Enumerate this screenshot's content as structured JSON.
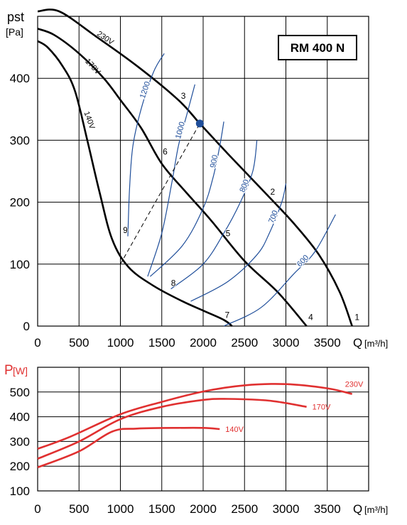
{
  "colors": {
    "grid": "#000000",
    "rpm_curve": "#1f4e9a",
    "power_curve": "#e03030",
    "point": "#1f4e9a"
  },
  "chart_data": [
    {
      "type": "line",
      "title": "RM 400 N",
      "ylabel": "pst",
      "yunit": "[Pa]",
      "xlabel": "Q",
      "xunit": "[m³/h]",
      "xlim": [
        0,
        4000
      ],
      "ylim": [
        0,
        500
      ],
      "x_ticks": [
        0,
        500,
        1000,
        1500,
        2000,
        2500,
        3000,
        3500
      ],
      "y_ticks": [
        0,
        100,
        200,
        300,
        400
      ],
      "x_tick_labels": [
        "0",
        "500",
        "1000",
        "1500",
        "2000",
        "2500",
        "3000",
        "3500"
      ],
      "y_tick_labels": [
        "0",
        "100",
        "200",
        "300",
        "400"
      ],
      "grid": true,
      "series": [
        {
          "name": "230V",
          "points": [
            [
              0,
              508
            ],
            [
              260,
              508
            ],
            [
              700,
              468
            ],
            [
              1200,
              420
            ],
            [
              1700,
              365
            ],
            [
              1960,
              327
            ],
            [
              2300,
              278
            ],
            [
              2800,
              208
            ],
            [
              3100,
              165
            ],
            [
              3400,
              115
            ],
            [
              3650,
              55
            ],
            [
              3800,
              0
            ]
          ]
        },
        {
          "name": "170V",
          "points": [
            [
              0,
              480
            ],
            [
              200,
              470
            ],
            [
              500,
              440
            ],
            [
              800,
              400
            ],
            [
              1000,
              365
            ],
            [
              1250,
              320
            ],
            [
              1500,
              262
            ],
            [
              1800,
              215
            ],
            [
              2100,
              170
            ],
            [
              2500,
              105
            ],
            [
              2900,
              55
            ],
            [
              3250,
              0
            ]
          ]
        },
        {
          "name": "140V",
          "points": [
            [
              0,
              460
            ],
            [
              120,
              450
            ],
            [
              300,
              420
            ],
            [
              450,
              380
            ],
            [
              600,
              300
            ],
            [
              750,
              215
            ],
            [
              900,
              140
            ],
            [
              1100,
              95
            ],
            [
              1400,
              65
            ],
            [
              1750,
              40
            ],
            [
              2000,
              25
            ],
            [
              2250,
              10
            ],
            [
              2350,
              0
            ]
          ]
        },
        {
          "name": "600",
          "style": "rpm",
          "points": [
            [
              2250,
              0
            ],
            [
              2700,
              30
            ],
            [
              3100,
              85
            ],
            [
              3350,
              120
            ],
            [
              3600,
              180
            ]
          ]
        },
        {
          "name": "700",
          "style": "rpm",
          "points": [
            [
              1850,
              40
            ],
            [
              2300,
              72
            ],
            [
              2650,
              115
            ],
            [
              2800,
              150
            ],
            [
              2950,
              200
            ],
            [
              3000,
              230
            ]
          ]
        },
        {
          "name": "800",
          "style": "rpm",
          "points": [
            [
              1610,
              60
            ],
            [
              2000,
              100
            ],
            [
              2250,
              150
            ],
            [
              2450,
              200
            ],
            [
              2600,
              250
            ],
            [
              2650,
              300
            ]
          ]
        },
        {
          "name": "900",
          "style": "rpm",
          "points": [
            [
              1360,
              80
            ],
            [
              1750,
              130
            ],
            [
              2000,
              190
            ],
            [
              2120,
              240
            ],
            [
              2200,
              290
            ],
            [
              2250,
              330
            ]
          ]
        },
        {
          "name": "1000",
          "style": "rpm",
          "points": [
            [
              1330,
              80
            ],
            [
              1500,
              150
            ],
            [
              1620,
              230
            ],
            [
              1700,
              290
            ],
            [
              1800,
              340
            ],
            [
              1900,
              390
            ]
          ]
        },
        {
          "name": "1200",
          "style": "rpm",
          "points": [
            [
              1090,
              145
            ],
            [
              1110,
              220
            ],
            [
              1150,
              290
            ],
            [
              1250,
              350
            ],
            [
              1400,
              410
            ],
            [
              1530,
              440
            ]
          ]
        },
        {
          "name": "system",
          "style": "dashed",
          "points": [
            [
              1000,
              100
            ],
            [
              1960,
              327
            ]
          ]
        }
      ],
      "markers": [
        {
          "label": "1",
          "x": 3860,
          "y": 10
        },
        {
          "label": "2",
          "x": 2840,
          "y": 212
        },
        {
          "label": "3",
          "x": 1760,
          "y": 367
        },
        {
          "label": "4",
          "x": 3300,
          "y": 10
        },
        {
          "label": "5",
          "x": 2300,
          "y": 145
        },
        {
          "label": "6",
          "x": 1540,
          "y": 277
        },
        {
          "label": "7",
          "x": 2290,
          "y": 13
        },
        {
          "label": "8",
          "x": 1640,
          "y": 65
        },
        {
          "label": "9",
          "x": 1060,
          "y": 150
        }
      ],
      "operating_point": {
        "x": 1960,
        "y": 327
      },
      "voltage_labels": [
        {
          "text": "230V",
          "x": 710,
          "y": 470,
          "angle": 34
        },
        {
          "text": "170V",
          "x": 570,
          "y": 427,
          "angle": 47
        },
        {
          "text": "140V",
          "x": 560,
          "y": 345,
          "angle": 70
        }
      ]
    },
    {
      "type": "line",
      "ylabel": "P",
      "yunit": "[W]",
      "xlabel": "Q",
      "xunit": "[m³/h]",
      "xlim": [
        0,
        4000
      ],
      "ylim": [
        100,
        600
      ],
      "x_ticks": [
        0,
        500,
        1000,
        1500,
        2000,
        2500,
        3000,
        3500
      ],
      "y_ticks": [
        100,
        200,
        300,
        400,
        500
      ],
      "x_tick_labels": [
        "0",
        "500",
        "1000",
        "1500",
        "2000",
        "2500",
        "3000",
        "3500"
      ],
      "y_tick_labels": [
        "100",
        "200",
        "300",
        "400",
        "500"
      ],
      "grid": true,
      "series": [
        {
          "name": "230V",
          "points": [
            [
              0,
              270
            ],
            [
              400,
              320
            ],
            [
              1000,
              410
            ],
            [
              1500,
              460
            ],
            [
              2000,
              502
            ],
            [
              2500,
              527
            ],
            [
              3000,
              532
            ],
            [
              3500,
              515
            ],
            [
              3800,
              492
            ]
          ]
        },
        {
          "name": "170V",
          "points": [
            [
              0,
              230
            ],
            [
              500,
              300
            ],
            [
              1000,
              390
            ],
            [
              1500,
              440
            ],
            [
              2000,
              468
            ],
            [
              2300,
              472
            ],
            [
              2800,
              465
            ],
            [
              3250,
              440
            ]
          ]
        },
        {
          "name": "140V",
          "points": [
            [
              0,
              195
            ],
            [
              500,
              260
            ],
            [
              900,
              340
            ],
            [
              1200,
              352
            ],
            [
              1700,
              355
            ],
            [
              2000,
              355
            ],
            [
              2200,
              350
            ]
          ]
        }
      ]
    }
  ]
}
